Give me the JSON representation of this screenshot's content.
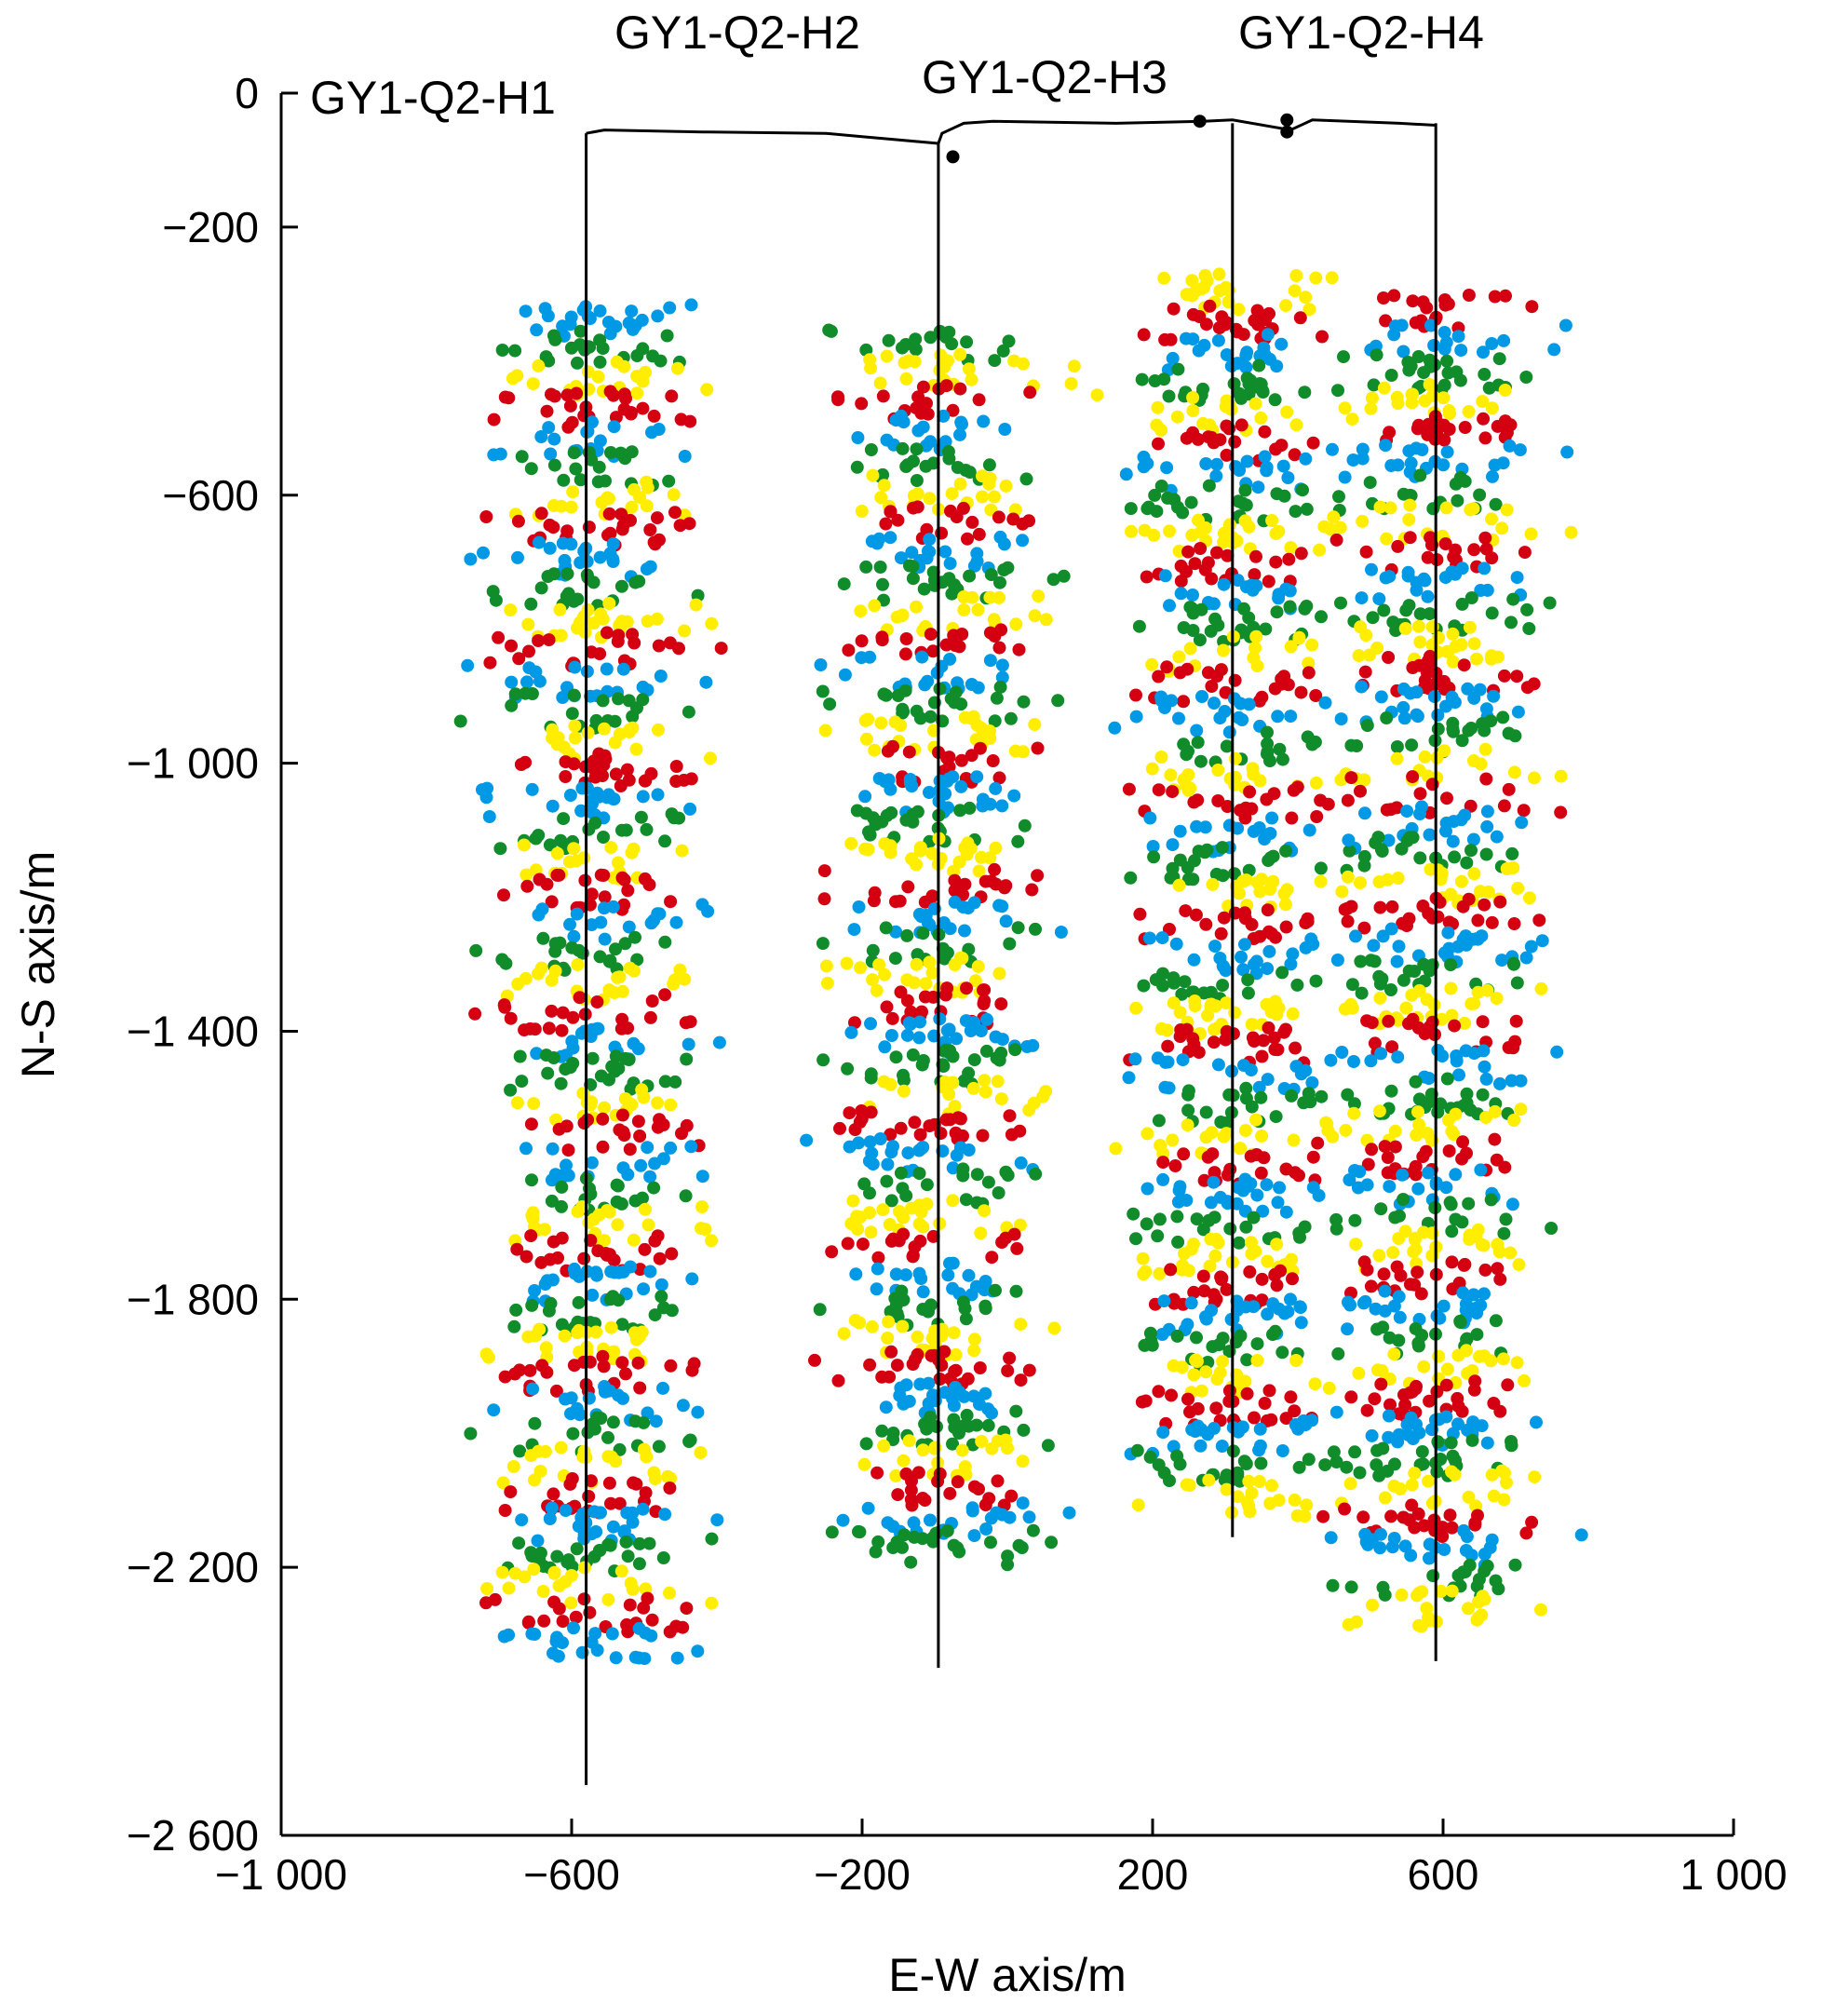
{
  "chart_data": {
    "type": "scatter",
    "title": "",
    "xlabel": "E-W axis/m",
    "ylabel": "N-S axis/m",
    "xlim": [
      -1000,
      1000
    ],
    "ylim": [
      -2600,
      0
    ],
    "xticks": [
      {
        "value": -1000,
        "label": "−1 000"
      },
      {
        "value": -600,
        "label": "−600"
      },
      {
        "value": -200,
        "label": "−200"
      },
      {
        "value": 200,
        "label": "200"
      },
      {
        "value": 600,
        "label": "600"
      },
      {
        "value": 1000,
        "label": "1 000"
      }
    ],
    "yticks": [
      {
        "value": 0,
        "label": "0"
      },
      {
        "value": -200,
        "label": "−200"
      },
      {
        "value": -600,
        "label": "−600"
      },
      {
        "value": -1000,
        "label": "−1 000"
      },
      {
        "value": -1400,
        "label": "−1 400"
      },
      {
        "value": -1800,
        "label": "−1 800"
      },
      {
        "value": -2200,
        "label": "−2 200"
      },
      {
        "value": -2600,
        "label": "−2 600"
      }
    ],
    "marker_colors": [
      "#0099e6",
      "#118c2a",
      "#ffee00",
      "#d40012"
    ],
    "wells": [
      {
        "name": "GY1-Q2-H1",
        "x": -580,
        "top": -60,
        "bottom": -2525,
        "center_x": -570,
        "half_width": 155,
        "events_top": -310,
        "events_bottom": -2370
      },
      {
        "name": "GY1-Q2-H2",
        "x": -95,
        "top": -75,
        "bottom": -2350,
        "center_x": -95,
        "half_width": 160,
        "events_top": -345,
        "events_bottom": -2190
      },
      {
        "name": "GY1-Q2-H3",
        "x": 310,
        "top": -45,
        "bottom": -2155,
        "center_x": 310,
        "half_width": 160,
        "events_top": -270,
        "events_bottom": -2120
      },
      {
        "name": "GY1-Q2-H4",
        "x": 590,
        "top": -45,
        "bottom": -2340,
        "center_x": 590,
        "half_width": 160,
        "events_top": -300,
        "events_bottom": -2300
      }
    ],
    "surface_path": [
      [
        -580,
        -60
      ],
      [
        -555,
        -55
      ],
      [
        -420,
        -58
      ],
      [
        -250,
        -60
      ],
      [
        -200,
        -65
      ],
      [
        -95,
        -75
      ],
      [
        -90,
        -60
      ],
      [
        -60,
        -45
      ],
      [
        -20,
        -42
      ],
      [
        150,
        -45
      ],
      [
        270,
        -42
      ],
      [
        310,
        -40
      ],
      [
        390,
        -55
      ],
      [
        420,
        -40
      ],
      [
        540,
        -45
      ],
      [
        590,
        -48
      ]
    ],
    "legend": null,
    "grid": false
  }
}
